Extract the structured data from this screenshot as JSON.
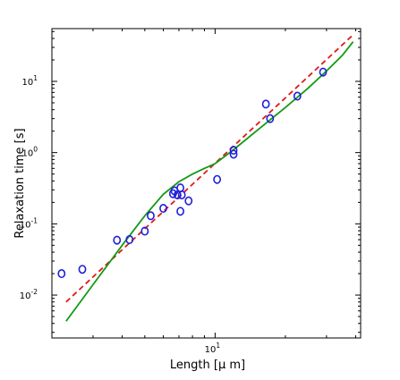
{
  "chart_data": {
    "type": "scatter",
    "title": "",
    "xlabel": "Length [μ m]",
    "ylabel": "Relaxation time [s]",
    "xscale": "log",
    "yscale": "log",
    "xlim": [
      2.0,
      42.0
    ],
    "ylim": [
      0.0025,
      55
    ],
    "x_ticks": [
      {
        "value": 10,
        "base": "10",
        "exp": "1"
      }
    ],
    "y_ticks": [
      {
        "value": 0.01,
        "base": "10",
        "exp": "-2"
      },
      {
        "value": 0.1,
        "base": "10",
        "exp": "-1"
      },
      {
        "value": 1,
        "base": "10",
        "exp": "0"
      },
      {
        "value": 10,
        "base": "10",
        "exp": "1"
      }
    ],
    "grid": false,
    "legend": "none",
    "series": [
      {
        "kind": "scatter",
        "marker": "circle-open",
        "color": "#1f1fdc",
        "points": [
          [
            2.2,
            0.02
          ],
          [
            2.7,
            0.023
          ],
          [
            3.8,
            0.059
          ],
          [
            4.3,
            0.06
          ],
          [
            5.0,
            0.079
          ],
          [
            5.3,
            0.13
          ],
          [
            6.0,
            0.165
          ],
          [
            6.6,
            0.265
          ],
          [
            6.7,
            0.29
          ],
          [
            6.9,
            0.255
          ],
          [
            7.1,
            0.32
          ],
          [
            7.1,
            0.15
          ],
          [
            7.2,
            0.255
          ],
          [
            7.7,
            0.21
          ],
          [
            10.2,
            0.42
          ],
          [
            12.0,
            1.08
          ],
          [
            12.0,
            0.95
          ],
          [
            16.5,
            4.8
          ],
          [
            17.2,
            3.0
          ],
          [
            22.5,
            6.2
          ],
          [
            29.0,
            13.5
          ]
        ]
      },
      {
        "kind": "line",
        "style": "dashed",
        "color": "#e01818",
        "points": [
          [
            2.3,
            0.008
          ],
          [
            39.0,
            45.0
          ]
        ]
      },
      {
        "kind": "line",
        "style": "solid",
        "color": "#139a13",
        "points": [
          [
            2.3,
            0.0043
          ],
          [
            3.0,
            0.014
          ],
          [
            4.0,
            0.05
          ],
          [
            5.0,
            0.13
          ],
          [
            6.0,
            0.26
          ],
          [
            7.0,
            0.39
          ],
          [
            8.0,
            0.5
          ],
          [
            9.0,
            0.6
          ],
          [
            10.0,
            0.7
          ],
          [
            12.0,
            1.1
          ],
          [
            15.0,
            2.0
          ],
          [
            20.0,
            4.3
          ],
          [
            25.0,
            8.0
          ],
          [
            30.0,
            14.0
          ],
          [
            35.0,
            23.0
          ],
          [
            39.0,
            36.0
          ]
        ]
      }
    ]
  }
}
